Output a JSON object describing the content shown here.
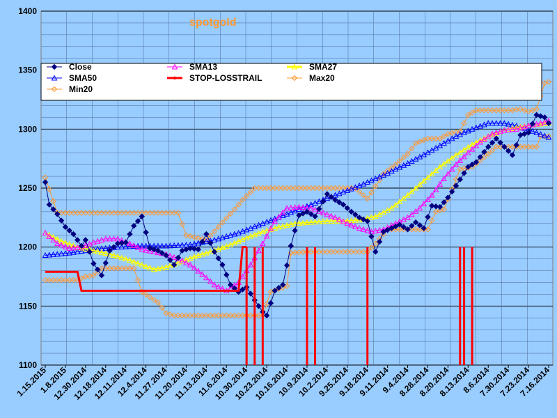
{
  "chart_data": {
    "type": "line",
    "title": "spotgold",
    "title_color": "#FF9933",
    "ylim": [
      1100,
      1400
    ],
    "yticks": [
      1100,
      1150,
      1200,
      1250,
      1300,
      1350,
      1400
    ],
    "x_reversed": true,
    "x_count": 126,
    "xtick_labels": [
      "1.15.2015",
      "1.8.2015",
      "12.30.2014",
      "12.18.2014",
      "12.11.2014",
      "12.4.2014",
      "11.27.2014",
      "11.20.2014",
      "11.13.2014",
      "11.6.2014",
      "10.30.2014",
      "10.23.2014",
      "10.16.2014",
      "10.9.2014",
      "10.2.2014",
      "9.25.2014",
      "9.18.2014",
      "9.11.2014",
      "9.4.2014",
      "8.28.2014",
      "8.20.2014",
      "8.13.2014",
      "8.6.2014",
      "7.30.2014",
      "7.23.2014",
      "7.16.2014"
    ],
    "series": [
      {
        "name": "Close",
        "color": "#000080",
        "marker": "diamond",
        "key": [
          [
            0,
            1255
          ],
          [
            1,
            1236
          ],
          [
            3,
            1228
          ],
          [
            5,
            1217
          ],
          [
            7,
            1211
          ],
          [
            9,
            1201
          ],
          [
            10,
            1206
          ],
          [
            12,
            1186
          ],
          [
            14,
            1176
          ],
          [
            16,
            1197
          ],
          [
            18,
            1203
          ],
          [
            20,
            1204
          ],
          [
            22,
            1218
          ],
          [
            24,
            1226
          ],
          [
            26,
            1199
          ],
          [
            28,
            1197
          ],
          [
            30,
            1193
          ],
          [
            32,
            1185
          ],
          [
            34,
            1197
          ],
          [
            36,
            1199
          ],
          [
            38,
            1198
          ],
          [
            40,
            1211
          ],
          [
            42,
            1196
          ],
          [
            44,
            1185
          ],
          [
            46,
            1168
          ],
          [
            48,
            1162
          ],
          [
            50,
            1166
          ],
          [
            52,
            1155
          ],
          [
            54,
            1145
          ],
          [
            55,
            1142
          ],
          [
            57,
            1163
          ],
          [
            59,
            1168
          ],
          [
            61,
            1201
          ],
          [
            63,
            1227
          ],
          [
            65,
            1230
          ],
          [
            67,
            1226
          ],
          [
            70,
            1245
          ],
          [
            72,
            1240
          ],
          [
            74,
            1236
          ],
          [
            76,
            1230
          ],
          [
            78,
            1225
          ],
          [
            80,
            1222
          ],
          [
            82,
            1196
          ],
          [
            84,
            1213
          ],
          [
            86,
            1216
          ],
          [
            88,
            1219
          ],
          [
            90,
            1215
          ],
          [
            92,
            1221
          ],
          [
            94,
            1216
          ],
          [
            96,
            1235
          ],
          [
            98,
            1234
          ],
          [
            100,
            1242
          ],
          [
            102,
            1252
          ],
          [
            105,
            1268
          ],
          [
            107,
            1272
          ],
          [
            110,
            1285
          ],
          [
            112,
            1292
          ],
          [
            114,
            1285
          ],
          [
            116,
            1278
          ],
          [
            118,
            1295
          ],
          [
            120,
            1297
          ],
          [
            122,
            1312
          ],
          [
            124,
            1310
          ],
          [
            125,
            1305
          ]
        ]
      },
      {
        "name": "SMA13",
        "color": "#FF00FF",
        "marker": "triangle",
        "key": [
          [
            0,
            1212
          ],
          [
            3,
            1203
          ],
          [
            6,
            1199
          ],
          [
            9,
            1200
          ],
          [
            12,
            1204
          ],
          [
            15,
            1207
          ],
          [
            18,
            1207
          ],
          [
            21,
            1203
          ],
          [
            24,
            1198
          ],
          [
            27,
            1196
          ],
          [
            30,
            1194
          ],
          [
            33,
            1190
          ],
          [
            36,
            1185
          ],
          [
            39,
            1177
          ],
          [
            42,
            1168
          ],
          [
            45,
            1163
          ],
          [
            48,
            1170
          ],
          [
            51,
            1185
          ],
          [
            54,
            1203
          ],
          [
            57,
            1222
          ],
          [
            60,
            1233
          ],
          [
            63,
            1234
          ],
          [
            66,
            1233
          ],
          [
            69,
            1229
          ],
          [
            72,
            1225
          ],
          [
            75,
            1220
          ],
          [
            78,
            1216
          ],
          [
            81,
            1213
          ],
          [
            84,
            1215
          ],
          [
            87,
            1220
          ],
          [
            90,
            1225
          ],
          [
            93,
            1233
          ],
          [
            96,
            1244
          ],
          [
            99,
            1258
          ],
          [
            102,
            1270
          ],
          [
            105,
            1280
          ],
          [
            108,
            1289
          ],
          [
            111,
            1296
          ],
          [
            114,
            1299
          ],
          [
            117,
            1300
          ],
          [
            120,
            1303
          ],
          [
            123,
            1305
          ],
          [
            125,
            1307
          ]
        ]
      },
      {
        "name": "SMA27",
        "color": "#FFFF00",
        "marker": "triangle",
        "key": [
          [
            0,
            1212
          ],
          [
            4,
            1205
          ],
          [
            8,
            1200
          ],
          [
            12,
            1197
          ],
          [
            16,
            1194
          ],
          [
            20,
            1190
          ],
          [
            24,
            1185
          ],
          [
            27,
            1181
          ],
          [
            30,
            1183
          ],
          [
            34,
            1188
          ],
          [
            38,
            1193
          ],
          [
            42,
            1197
          ],
          [
            46,
            1202
          ],
          [
            50,
            1208
          ],
          [
            54,
            1213
          ],
          [
            58,
            1217
          ],
          [
            62,
            1220
          ],
          [
            66,
            1221
          ],
          [
            70,
            1222
          ],
          [
            74,
            1222
          ],
          [
            78,
            1223
          ],
          [
            82,
            1226
          ],
          [
            86,
            1233
          ],
          [
            90,
            1244
          ],
          [
            94,
            1256
          ],
          [
            98,
            1268
          ],
          [
            102,
            1278
          ],
          [
            106,
            1287
          ],
          [
            110,
            1294
          ],
          [
            114,
            1299
          ],
          [
            118,
            1302
          ],
          [
            122,
            1304
          ],
          [
            125,
            1305
          ]
        ]
      },
      {
        "name": "SMA50",
        "color": "#0000FF",
        "marker": "triangle",
        "key": [
          [
            0,
            1193
          ],
          [
            6,
            1195
          ],
          [
            12,
            1198
          ],
          [
            18,
            1200
          ],
          [
            24,
            1201
          ],
          [
            30,
            1201
          ],
          [
            36,
            1202
          ],
          [
            42,
            1206
          ],
          [
            48,
            1212
          ],
          [
            54,
            1220
          ],
          [
            60,
            1228
          ],
          [
            66,
            1236
          ],
          [
            72,
            1244
          ],
          [
            78,
            1252
          ],
          [
            84,
            1261
          ],
          [
            90,
            1271
          ],
          [
            96,
            1282
          ],
          [
            102,
            1294
          ],
          [
            106,
            1300
          ],
          [
            110,
            1305
          ],
          [
            114,
            1305
          ],
          [
            118,
            1302
          ],
          [
            122,
            1297
          ],
          [
            125,
            1293
          ]
        ]
      },
      {
        "name": "STOP-LOSSTRAIL",
        "color": "#FF0000",
        "marker": "cross",
        "key": [
          [
            0,
            1179
          ],
          [
            8,
            1179
          ],
          [
            9,
            1163
          ],
          [
            48,
            1163
          ],
          [
            49,
            1200
          ],
          [
            50,
            1200
          ]
        ]
      },
      {
        "name": "Max20",
        "color": "#FF9933",
        "marker": "diamond",
        "key": [
          [
            0,
            1259
          ],
          [
            3,
            1229
          ],
          [
            33,
            1229
          ],
          [
            35,
            1210
          ],
          [
            40,
            1206
          ],
          [
            47,
            1232
          ],
          [
            49,
            1240
          ],
          [
            52,
            1250
          ],
          [
            77,
            1250
          ],
          [
            80,
            1241
          ],
          [
            84,
            1262
          ],
          [
            87,
            1270
          ],
          [
            90,
            1279
          ],
          [
            92,
            1288
          ],
          [
            95,
            1292
          ],
          [
            98,
            1292
          ],
          [
            100,
            1296
          ],
          [
            103,
            1298
          ],
          [
            105,
            1312
          ],
          [
            107,
            1316
          ],
          [
            116,
            1316
          ],
          [
            118,
            1317
          ],
          [
            120,
            1315
          ],
          [
            122,
            1317
          ],
          [
            124,
            1339
          ],
          [
            125,
            1340
          ]
        ]
      },
      {
        "name": "Min20",
        "color": "#FF9933",
        "marker": "diamond",
        "key": [
          [
            0,
            1172
          ],
          [
            8,
            1172
          ],
          [
            10,
            1175
          ],
          [
            12,
            1176
          ],
          [
            14,
            1182
          ],
          [
            22,
            1182
          ],
          [
            24,
            1162
          ],
          [
            28,
            1153
          ],
          [
            30,
            1144
          ],
          [
            32,
            1142
          ],
          [
            54,
            1142
          ],
          [
            56,
            1162
          ],
          [
            60,
            1167
          ],
          [
            61,
            1195
          ],
          [
            65,
            1196
          ],
          [
            80,
            1196
          ],
          [
            82,
            1203
          ],
          [
            85,
            1215
          ],
          [
            95,
            1215
          ],
          [
            97,
            1230
          ],
          [
            99,
            1232
          ],
          [
            103,
            1266
          ],
          [
            106,
            1268
          ],
          [
            109,
            1276
          ],
          [
            112,
            1285
          ],
          [
            122,
            1285
          ],
          [
            123,
            1294
          ],
          [
            125,
            1294
          ]
        ]
      }
    ],
    "red_spikes": [
      50,
      52,
      54,
      65,
      67,
      80,
      103,
      104,
      106
    ]
  }
}
